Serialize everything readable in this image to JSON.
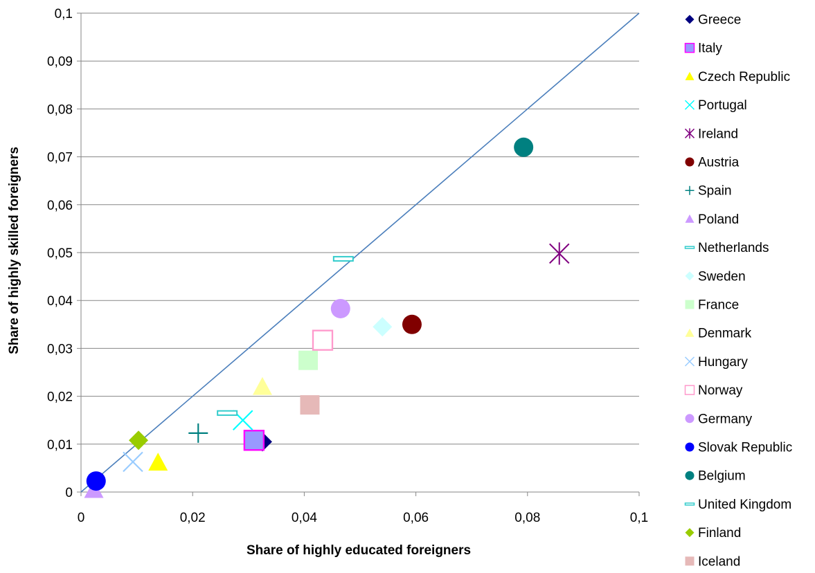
{
  "chart_data": {
    "type": "scatter",
    "title": "",
    "xlabel": "Share of highly educated foreigners",
    "ylabel": "Share of highly skilled foreigners",
    "xlim": [
      0,
      0.1
    ],
    "ylim": [
      0,
      0.1
    ],
    "x_ticks": [
      "0",
      "0,02",
      "0,04",
      "0,06",
      "0,08",
      "0,1"
    ],
    "y_ticks": [
      "0",
      "0,01",
      "0,02",
      "0,03",
      "0,04",
      "0,05",
      "0,06",
      "0,07",
      "0,08",
      "0,09",
      "0,1"
    ],
    "grid": "horizontal",
    "legend_position": "right",
    "reference_line": {
      "x": [
        0,
        0.1
      ],
      "y": [
        0,
        0.1
      ],
      "color": "#4a7ebb"
    },
    "series": [
      {
        "name": "Greece",
        "x": 0.0325,
        "y": 0.0105,
        "marker": "diamond",
        "color": "#000080"
      },
      {
        "name": "Italy",
        "x": 0.031,
        "y": 0.0108,
        "marker": "square",
        "color": "#9999ff",
        "stroke": "#ff00ff"
      },
      {
        "name": "Czech Republic",
        "x": 0.0138,
        "y": 0.0062,
        "marker": "triangle",
        "color": "#ffff00"
      },
      {
        "name": "Portugal",
        "x": 0.029,
        "y": 0.015,
        "marker": "x",
        "color": "#00ffff"
      },
      {
        "name": "Ireland",
        "x": 0.0857,
        "y": 0.0498,
        "marker": "star",
        "color": "#800080"
      },
      {
        "name": "Austria",
        "x": 0.0593,
        "y": 0.035,
        "marker": "circle",
        "color": "#800000"
      },
      {
        "name": "Spain",
        "x": 0.021,
        "y": 0.0123,
        "marker": "plus",
        "color": "#008080"
      },
      {
        "name": "Poland",
        "x": 0.0023,
        "y": 0.0005,
        "marker": "triangle",
        "color": "#cc99ff"
      },
      {
        "name": "Netherlands",
        "x": 0.047,
        "y": 0.0487,
        "marker": "dash",
        "color": "#33cccc"
      },
      {
        "name": "Sweden",
        "x": 0.054,
        "y": 0.0345,
        "marker": "diamond",
        "color": "#ccffff"
      },
      {
        "name": "France",
        "x": 0.0407,
        "y": 0.0275,
        "marker": "square",
        "color": "#ccffcc"
      },
      {
        "name": "Denmark",
        "x": 0.0325,
        "y": 0.022,
        "marker": "triangle",
        "color": "#ffff99"
      },
      {
        "name": "Hungary",
        "x": 0.0093,
        "y": 0.0063,
        "marker": "x",
        "color": "#99ccff"
      },
      {
        "name": "Norway",
        "x": 0.0433,
        "y": 0.0317,
        "marker": "square-open",
        "color": "#ff99cc"
      },
      {
        "name": "Germany",
        "x": 0.0465,
        "y": 0.0383,
        "marker": "circle",
        "color": "#cc99ff"
      },
      {
        "name": "Slovak Republic",
        "x": 0.0027,
        "y": 0.0023,
        "marker": "circle",
        "color": "#0000ff"
      },
      {
        "name": "Belgium",
        "x": 0.0793,
        "y": 0.072,
        "marker": "circle",
        "color": "#008080"
      },
      {
        "name": "United Kingdom",
        "x": 0.0262,
        "y": 0.0165,
        "marker": "dash",
        "color": "#33cccc"
      },
      {
        "name": "Finland",
        "x": 0.0103,
        "y": 0.0108,
        "marker": "diamond",
        "color": "#99cc00"
      },
      {
        "name": "Iceland",
        "x": 0.041,
        "y": 0.0182,
        "marker": "square",
        "color": "#e6b9b8"
      }
    ]
  }
}
